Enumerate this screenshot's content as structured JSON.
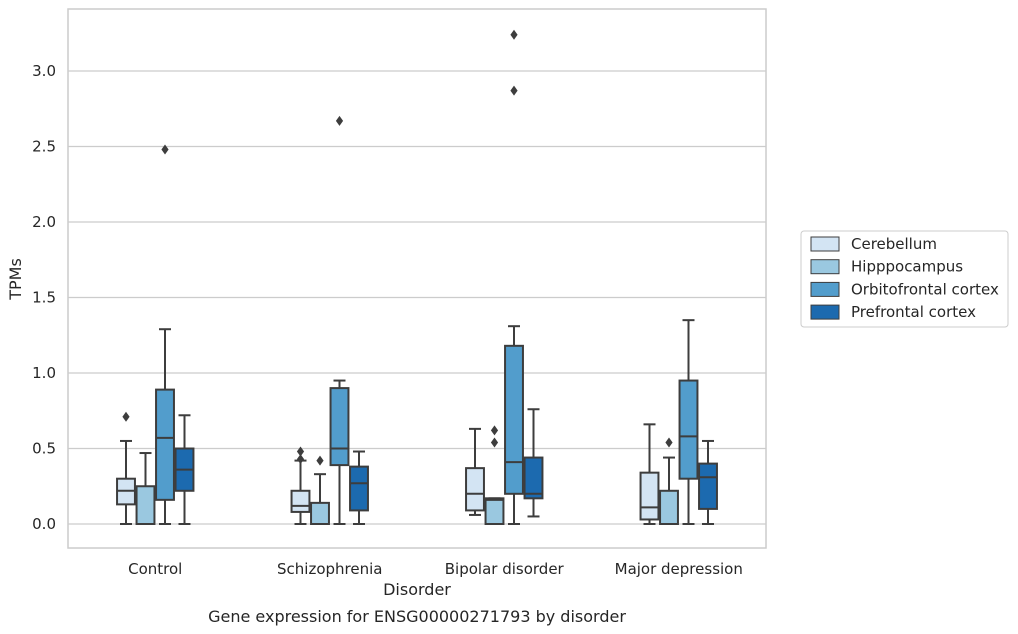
{
  "chart_data": {
    "type": "boxplot",
    "caption": "Gene expression for ENSG00000271793 by disorder",
    "xlabel": "Disorder",
    "ylabel": "TPMs",
    "ylim": [
      -0.16,
      3.4
    ],
    "yticks": [
      0.0,
      0.5,
      1.0,
      1.5,
      2.0,
      2.5,
      3.0
    ],
    "ytick_labels": [
      "0.0",
      "0.5",
      "1.0",
      "1.5",
      "2.0",
      "2.5",
      "3.0"
    ],
    "grid": "horizontal",
    "legend_position": "right",
    "categories": [
      "Control",
      "Schizophrenia",
      "Bipolar disorder",
      "Major depression"
    ],
    "series": [
      {
        "name": "Cerebellum",
        "color": "#d3e4f3",
        "boxes": [
          {
            "whislo": 0.0,
            "q1": 0.13,
            "med": 0.22,
            "q3": 0.3,
            "whishi": 0.55,
            "fliers": [
              0.71
            ]
          },
          {
            "whislo": 0.0,
            "q1": 0.08,
            "med": 0.12,
            "q3": 0.22,
            "whishi": 0.42,
            "fliers": [
              0.43,
              0.48
            ]
          },
          {
            "whislo": 0.06,
            "q1": 0.09,
            "med": 0.2,
            "q3": 0.37,
            "whishi": 0.63,
            "fliers": []
          },
          {
            "whislo": 0.0,
            "q1": 0.03,
            "med": 0.11,
            "q3": 0.34,
            "whishi": 0.66,
            "fliers": []
          }
        ]
      },
      {
        "name": "Hipppocampus",
        "color": "#9ac8e0",
        "boxes": [
          {
            "whislo": 0.0,
            "q1": 0.0,
            "med": 0.0,
            "q3": 0.25,
            "whishi": 0.47,
            "fliers": []
          },
          {
            "whislo": 0.0,
            "q1": 0.0,
            "med": 0.0,
            "q3": 0.14,
            "whishi": 0.33,
            "fliers": [
              0.42
            ]
          },
          {
            "whislo": 0.0,
            "q1": 0.0,
            "med": 0.16,
            "q3": 0.17,
            "whishi": 0.17,
            "fliers": [
              0.54,
              0.62
            ]
          },
          {
            "whislo": 0.0,
            "q1": 0.0,
            "med": 0.0,
            "q3": 0.22,
            "whishi": 0.44,
            "fliers": [
              0.54
            ]
          }
        ]
      },
      {
        "name": "Orbitofrontal cortex",
        "color": "#529dcc",
        "boxes": [
          {
            "whislo": 0.0,
            "q1": 0.16,
            "med": 0.57,
            "q3": 0.89,
            "whishi": 1.29,
            "fliers": [
              2.48
            ]
          },
          {
            "whislo": 0.0,
            "q1": 0.39,
            "med": 0.5,
            "q3": 0.9,
            "whishi": 0.95,
            "fliers": [
              2.67
            ]
          },
          {
            "whislo": 0.0,
            "q1": 0.2,
            "med": 0.41,
            "q3": 1.18,
            "whishi": 1.31,
            "fliers": [
              2.87,
              3.24
            ]
          },
          {
            "whislo": 0.0,
            "q1": 0.3,
            "med": 0.58,
            "q3": 0.95,
            "whishi": 1.35,
            "fliers": []
          }
        ]
      },
      {
        "name": "Prefrontal cortex",
        "color": "#1c6aaf",
        "boxes": [
          {
            "whislo": 0.0,
            "q1": 0.22,
            "med": 0.36,
            "q3": 0.5,
            "whishi": 0.72,
            "fliers": []
          },
          {
            "whislo": 0.0,
            "q1": 0.09,
            "med": 0.27,
            "q3": 0.38,
            "whishi": 0.48,
            "fliers": []
          },
          {
            "whislo": 0.05,
            "q1": 0.17,
            "med": 0.2,
            "q3": 0.44,
            "whishi": 0.76,
            "fliers": []
          },
          {
            "whislo": 0.0,
            "q1": 0.1,
            "med": 0.31,
            "q3": 0.4,
            "whishi": 0.55,
            "fliers": []
          }
        ]
      }
    ]
  }
}
